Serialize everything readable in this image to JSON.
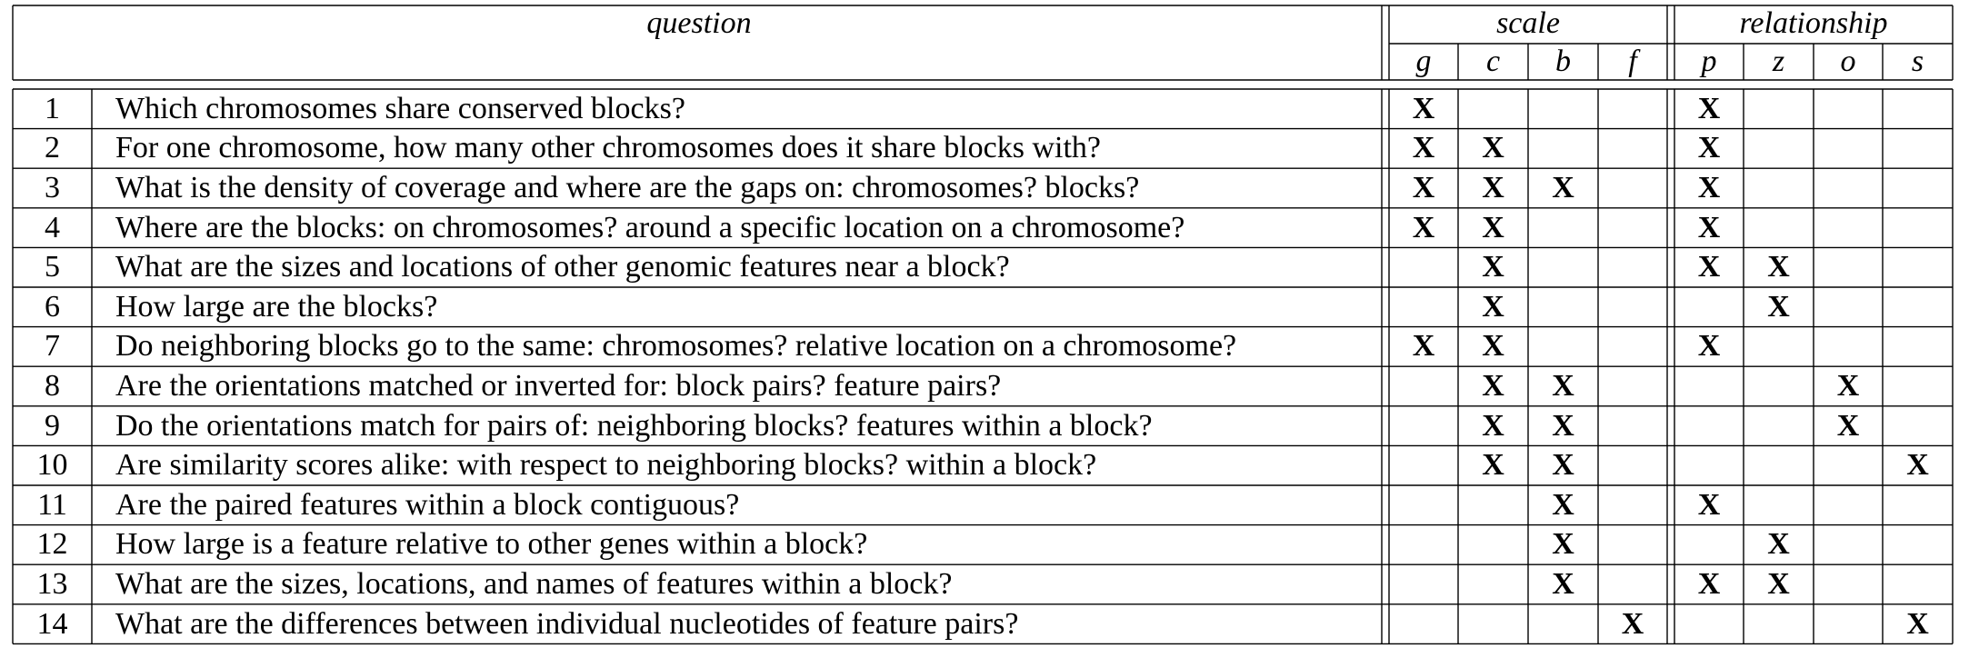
{
  "table": {
    "header": {
      "question": "question",
      "scale": "scale",
      "relationship": "relationship",
      "scale_columns": [
        "g",
        "c",
        "b",
        "f"
      ],
      "relationship_columns": [
        "p",
        "z",
        "o",
        "s"
      ]
    },
    "mark_symbol": "X",
    "rows": [
      {
        "num": "1",
        "question": "Which chromosomes share conserved blocks?",
        "marks": [
          1,
          0,
          0,
          0,
          1,
          0,
          0,
          0
        ]
      },
      {
        "num": "2",
        "question": "For one chromosome, how many other chromosomes does it share blocks with?",
        "marks": [
          1,
          1,
          0,
          0,
          1,
          0,
          0,
          0
        ]
      },
      {
        "num": "3",
        "question": "What is the density of coverage and where are the gaps on: chromosomes? blocks?",
        "marks": [
          1,
          1,
          1,
          0,
          1,
          0,
          0,
          0
        ]
      },
      {
        "num": "4",
        "question": "Where are the blocks: on chromosomes? around a specific location on a chromosome?",
        "marks": [
          1,
          1,
          0,
          0,
          1,
          0,
          0,
          0
        ]
      },
      {
        "num": "5",
        "question": "What are the sizes and locations of other genomic features near a block?",
        "marks": [
          0,
          1,
          0,
          0,
          1,
          1,
          0,
          0
        ]
      },
      {
        "num": "6",
        "question": "How large are the blocks?",
        "marks": [
          0,
          1,
          0,
          0,
          0,
          1,
          0,
          0
        ]
      },
      {
        "num": "7",
        "question": "Do neighboring blocks go to the same: chromosomes? relative location on a chromosome?",
        "marks": [
          1,
          1,
          0,
          0,
          1,
          0,
          0,
          0
        ]
      },
      {
        "num": "8",
        "question": "Are the orientations matched or inverted for: block pairs? feature pairs?",
        "marks": [
          0,
          1,
          1,
          0,
          0,
          0,
          1,
          0
        ]
      },
      {
        "num": "9",
        "question": "Do the orientations match for pairs of: neighboring blocks? features within a block?",
        "marks": [
          0,
          1,
          1,
          0,
          0,
          0,
          1,
          0
        ]
      },
      {
        "num": "10",
        "question": "Are similarity scores alike: with respect to neighboring blocks? within a block?",
        "marks": [
          0,
          1,
          1,
          0,
          0,
          0,
          0,
          1
        ]
      },
      {
        "num": "11",
        "question": "Are the paired features within a block contiguous?",
        "marks": [
          0,
          0,
          1,
          0,
          1,
          0,
          0,
          0
        ]
      },
      {
        "num": "12",
        "question": "How large is a feature relative to other genes within a block?",
        "marks": [
          0,
          0,
          1,
          0,
          0,
          1,
          0,
          0
        ]
      },
      {
        "num": "13",
        "question": "What are the sizes, locations, and names of features within a block?",
        "marks": [
          0,
          0,
          1,
          0,
          1,
          1,
          0,
          0
        ]
      },
      {
        "num": "14",
        "question": "What are the differences between individual nucleotides of feature pairs?",
        "marks": [
          0,
          0,
          0,
          1,
          0,
          0,
          0,
          1
        ]
      }
    ]
  }
}
